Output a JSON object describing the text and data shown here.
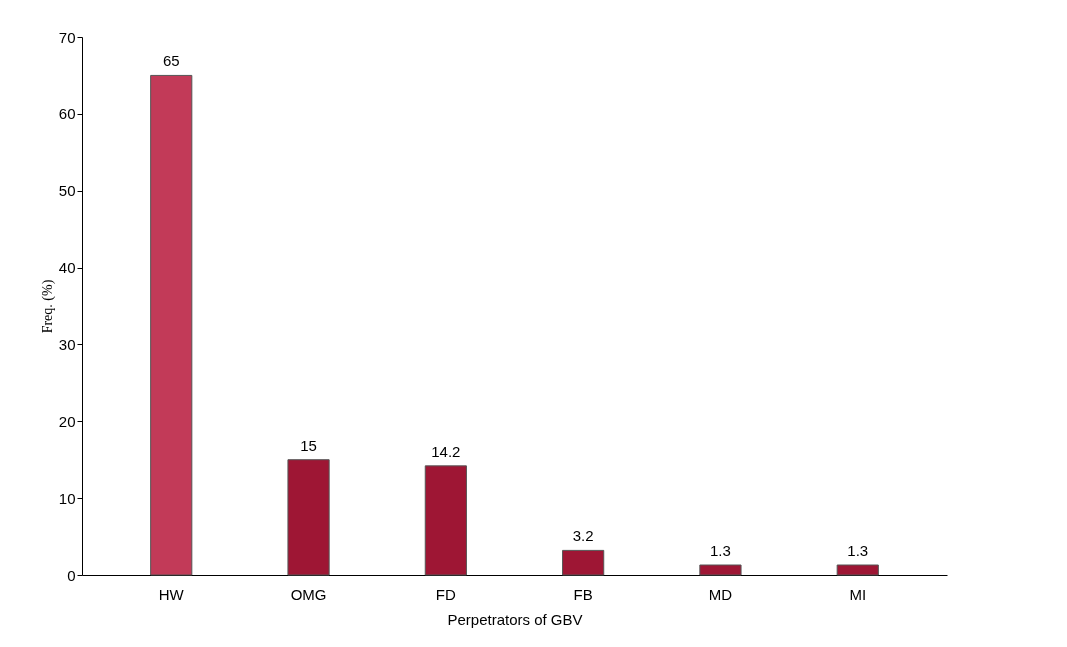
{
  "chart_data": {
    "type": "bar",
    "xlabel": "Perpetrators of GBV",
    "ylabel": "Freq. (%)",
    "categories": [
      "HW",
      "OMG",
      "FD",
      "FB",
      "MD",
      "MI"
    ],
    "values": [
      65,
      15,
      14.2,
      3.2,
      1.3,
      1.3
    ],
    "colors": [
      "#c23a58",
      "#9e1634",
      "#9e1634",
      "#9e1634",
      "#9e1634",
      "#9e1634"
    ],
    "ylim": [
      0,
      70
    ],
    "yticks": [
      0,
      10,
      20,
      30,
      40,
      50,
      60,
      70
    ],
    "data_labels": true
  }
}
